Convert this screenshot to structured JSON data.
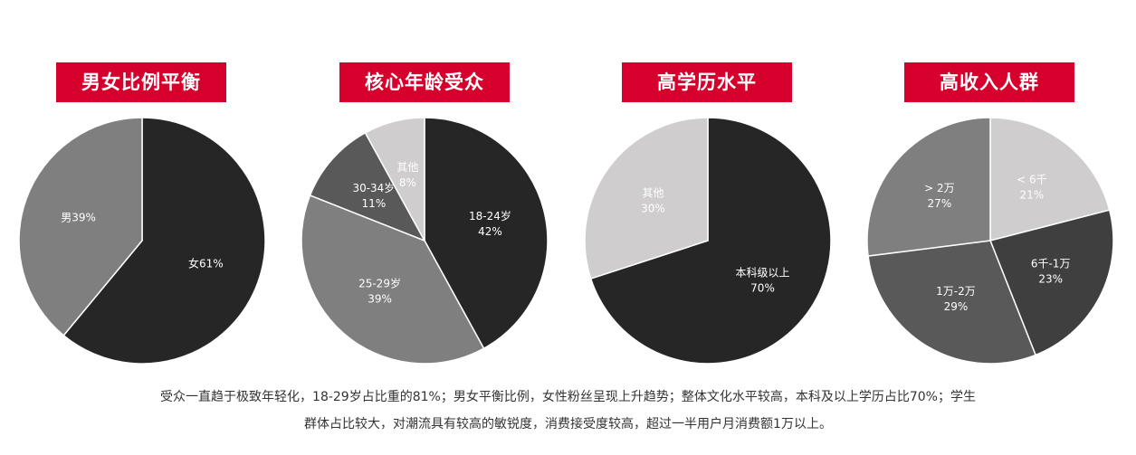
{
  "colors": {
    "badge": "#d6002c",
    "badge_text": "#ffffff",
    "label_dark_bg": "#ffffff",
    "label_light_bg": "#ffffff"
  },
  "chart_data": [
    {
      "type": "pie",
      "title": "男女比例平衡",
      "slices": [
        {
          "label": "女61%",
          "value": 61,
          "color": "#262626"
        },
        {
          "label": "男39%",
          "value": 39,
          "color": "#7f7f7f"
        }
      ]
    },
    {
      "type": "pie",
      "title": "核心年龄受众",
      "slices": [
        {
          "label": "18-24岁\n42%",
          "value": 42,
          "color": "#262626"
        },
        {
          "label": "25-29岁\n39%",
          "value": 39,
          "color": "#7f7f7f"
        },
        {
          "label": "30-34岁\n11%",
          "value": 11,
          "color": "#595959"
        },
        {
          "label": "其他\n8%",
          "value": 8,
          "color": "#cfcdcd"
        }
      ]
    },
    {
      "type": "pie",
      "title": "高学历水平",
      "slices": [
        {
          "label": "本科级以上\n70%",
          "value": 70,
          "color": "#262626"
        },
        {
          "label": "其他\n30%",
          "value": 30,
          "color": "#cfcdcd"
        }
      ]
    },
    {
      "type": "pie",
      "title": "高收入人群",
      "slices": [
        {
          "label": "< 6千\n21%",
          "value": 21,
          "color": "#cfcdcd"
        },
        {
          "label": "6千-1万\n23%",
          "value": 23,
          "color": "#3f3f3f"
        },
        {
          "label": "1万-2万\n29%",
          "value": 29,
          "color": "#595959"
        },
        {
          "label": "> 2万\n27%",
          "value": 27,
          "color": "#7f7f7f"
        }
      ]
    }
  ],
  "caption": {
    "line1": "受众一直趋于极致年轻化，18-29岁占比重的81%；男女平衡比例，女性粉丝呈现上升趋势；整体文化水平较高，本科及以上学历占比70%；学生",
    "line2": "群体占比较大，对潮流具有较高的敏锐度，消费接受度较高，超过一半用户月消费额1万以上。"
  }
}
